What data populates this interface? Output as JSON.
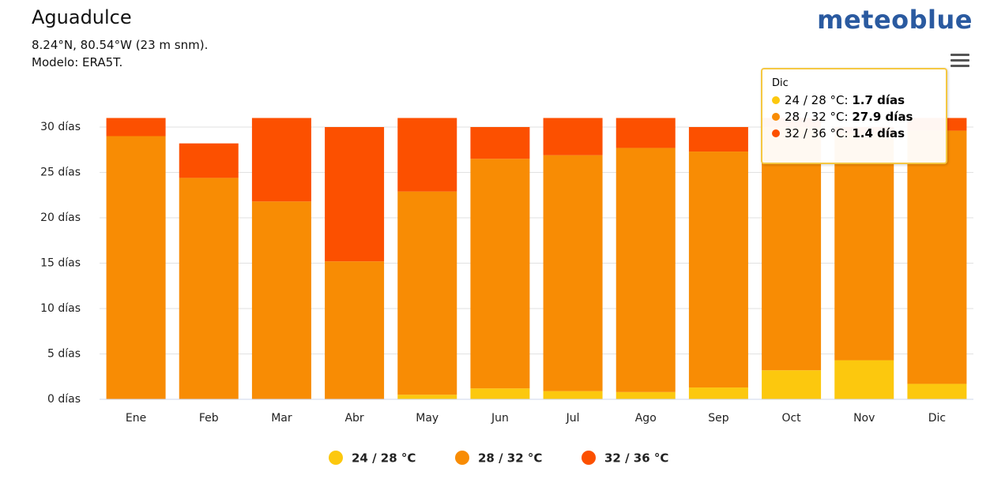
{
  "chart_data": {
    "type": "stacked_bar",
    "title": "Aguadulce",
    "subtitle": "8.24°N, 80.54°W (23 m snm).",
    "model": "Modelo: ERA5T.",
    "brand": "meteoblue",
    "categories": [
      "Ene",
      "Feb",
      "Mar",
      "Abr",
      "May",
      "Jun",
      "Jul",
      "Ago",
      "Sep",
      "Oct",
      "Nov",
      "Dic"
    ],
    "series": [
      {
        "name": "24 / 28 °C",
        "color": "#fcc80e",
        "values": [
          0,
          0,
          0,
          0,
          0.5,
          1.2,
          0.9,
          0.8,
          1.3,
          3.2,
          4.3,
          1.7
        ]
      },
      {
        "name": "28 / 32 °C",
        "color": "#f88c04",
        "values": [
          29,
          24.4,
          21.8,
          15.2,
          22.4,
          25.3,
          26.0,
          26.9,
          26.0,
          26.8,
          25.0,
          27.9
        ]
      },
      {
        "name": "32 / 36 °C",
        "color": "#fc5000",
        "values": [
          2,
          3.8,
          9.2,
          14.8,
          8.1,
          3.5,
          4.1,
          3.3,
          2.7,
          1.0,
          0.7,
          1.4
        ]
      }
    ],
    "ylim": [
      0,
      31
    ],
    "yticks": [
      {
        "value": 0,
        "label": "0 días"
      },
      {
        "value": 5,
        "label": "5 días"
      },
      {
        "value": 10,
        "label": "10 días"
      },
      {
        "value": 15,
        "label": "15 días"
      },
      {
        "value": 20,
        "label": "20 días"
      },
      {
        "value": 25,
        "label": "25 días"
      },
      {
        "value": 30,
        "label": "30 días"
      }
    ],
    "grid": true,
    "tooltip": {
      "title": "Dic",
      "items": [
        {
          "label": "24 / 28 °C: ",
          "value": "1.7 días"
        },
        {
          "label": "28 / 32 °C: ",
          "value": "27.9 días"
        },
        {
          "label": "32 / 36 °C: ",
          "value": "1.4 días"
        }
      ]
    }
  }
}
